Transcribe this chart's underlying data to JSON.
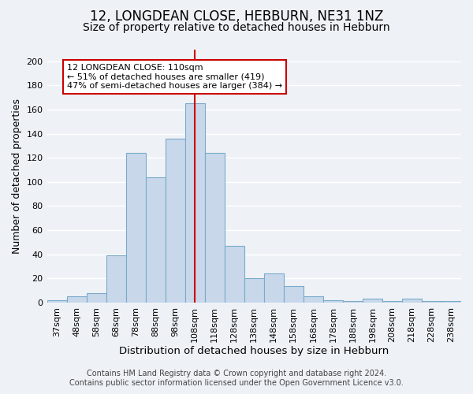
{
  "title": "12, LONGDEAN CLOSE, HEBBURN, NE31 1NZ",
  "subtitle": "Size of property relative to detached houses in Hebburn",
  "xlabel": "Distribution of detached houses by size in Hebburn",
  "ylabel": "Number of detached properties",
  "bar_labels": [
    "37sqm",
    "48sqm",
    "58sqm",
    "68sqm",
    "78sqm",
    "88sqm",
    "98sqm",
    "108sqm",
    "118sqm",
    "128sqm",
    "138sqm",
    "148sqm",
    "158sqm",
    "168sqm",
    "178sqm",
    "188sqm",
    "198sqm",
    "208sqm",
    "218sqm",
    "228sqm",
    "238sqm"
  ],
  "bar_heights": [
    2,
    5,
    8,
    39,
    124,
    104,
    136,
    165,
    124,
    47,
    20,
    24,
    14,
    5,
    2,
    1,
    3,
    1,
    3,
    1,
    1
  ],
  "bar_color": "#c8d8ea",
  "bar_edge_color": "#7aaac8",
  "vline_x": 7,
  "vline_color": "#cc0000",
  "ylim": [
    0,
    210
  ],
  "yticks": [
    0,
    20,
    40,
    60,
    80,
    100,
    120,
    140,
    160,
    180,
    200
  ],
  "annotation_title": "12 LONGDEAN CLOSE: 110sqm",
  "annotation_line1": "← 51% of detached houses are smaller (419)",
  "annotation_line2": "47% of semi-detached houses are larger (384) →",
  "box_facecolor": "#ffffff",
  "box_edgecolor": "#cc0000",
  "footer1": "Contains HM Land Registry data © Crown copyright and database right 2024.",
  "footer2": "Contains public sector information licensed under the Open Government Licence v3.0.",
  "background_color": "#eef2f7",
  "grid_color": "#ffffff",
  "title_fontsize": 12,
  "subtitle_fontsize": 10,
  "xlabel_fontsize": 9.5,
  "ylabel_fontsize": 9,
  "tick_fontsize": 8,
  "footer_fontsize": 7
}
